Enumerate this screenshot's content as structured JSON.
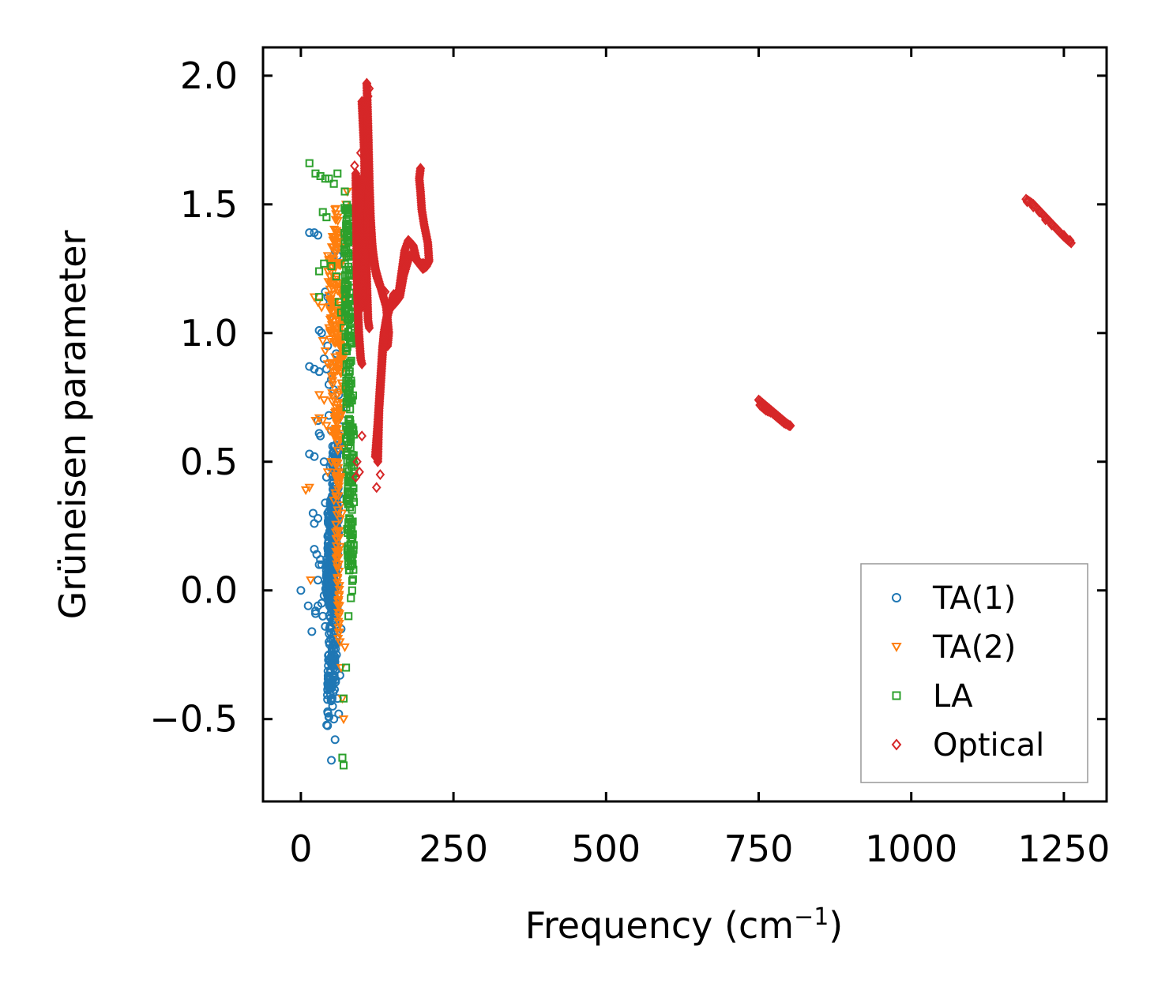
{
  "chart_data": {
    "type": "scatter",
    "title": "",
    "xlabel": "Frequency (cm",
    "xlabel_sup": "−1",
    "xlabel_close": ")",
    "ylabel": "Grüneisen parameter",
    "xlim": [
      -62,
      1320
    ],
    "ylim": [
      -0.82,
      2.11
    ],
    "xticks": [
      0,
      250,
      500,
      750,
      1000,
      1250
    ],
    "xtick_labels": [
      "0",
      "250",
      "500",
      "750",
      "1000",
      "1250"
    ],
    "yticks": [
      -0.5,
      0.0,
      0.5,
      1.0,
      1.5,
      2.0
    ],
    "ytick_labels": [
      "−0.5",
      "0.0",
      "0.5",
      "1.0",
      "1.5",
      "2.0"
    ],
    "grid": false,
    "legend_position": "bottom-right",
    "series": [
      {
        "name": "TA(1)",
        "marker": "circle",
        "color": "#1f77b4",
        "points": [
          [
            0,
            0
          ],
          [
            14,
            1.39
          ],
          [
            22,
            1.39
          ],
          [
            28,
            1.38
          ],
          [
            14,
            0.87
          ],
          [
            22,
            0.86
          ],
          [
            30,
            0.85
          ],
          [
            14,
            0.53
          ],
          [
            22,
            0.52
          ],
          [
            28,
            0.66
          ],
          [
            30,
            0.61
          ],
          [
            32,
            0.6
          ],
          [
            20,
            0.3
          ],
          [
            22,
            0.26
          ],
          [
            28,
            0.28
          ],
          [
            22,
            0.16
          ],
          [
            26,
            0.14
          ],
          [
            30,
            0.1
          ],
          [
            32,
            0.12
          ],
          [
            34,
            0.1
          ],
          [
            28,
            0.04
          ],
          [
            12,
            -0.06
          ],
          [
            24,
            -0.08
          ],
          [
            34,
            -0.05
          ],
          [
            38,
            -0.02
          ],
          [
            18,
            -0.16
          ],
          [
            24,
            -0.09
          ],
          [
            28,
            -0.06
          ],
          [
            36,
            -0.1
          ],
          [
            40,
            -0.14
          ],
          [
            30,
            1.01
          ],
          [
            34,
            1.0
          ],
          [
            40,
            1.16
          ],
          [
            44,
            1.14
          ],
          [
            48,
            1.12
          ],
          [
            56,
            1.32
          ],
          [
            60,
            1.3
          ],
          [
            38,
            0.9
          ],
          [
            42,
            0.86
          ],
          [
            46,
            0.8
          ],
          [
            50,
            0.82
          ],
          [
            54,
            0.78
          ],
          [
            62,
            0.76
          ],
          [
            38,
            0.5
          ],
          [
            42,
            0.44
          ],
          [
            48,
            0.48
          ],
          [
            52,
            0.56
          ],
          [
            58,
            0.62
          ],
          [
            64,
            0.6
          ],
          [
            40,
            0.34
          ],
          [
            44,
            0.3
          ],
          [
            46,
            -0.25
          ],
          [
            48,
            -0.32
          ],
          [
            50,
            -0.38
          ],
          [
            52,
            -0.45
          ],
          [
            54,
            -0.5
          ],
          [
            56,
            -0.58
          ],
          [
            50,
            -0.66
          ],
          [
            60,
            -0.42
          ],
          [
            62,
            -0.48
          ],
          [
            64,
            -0.33
          ],
          [
            58,
            -0.2
          ],
          [
            66,
            -0.15
          ],
          [
            44,
            0.95
          ],
          [
            52,
            1.05
          ],
          [
            58,
            0.92
          ],
          [
            62,
            0.88
          ],
          [
            66,
            0.7
          ],
          [
            70,
            0.66
          ],
          [
            46,
            0.68
          ],
          [
            50,
            0.62
          ]
        ],
        "dense_bands": [
          [
            [
              42,
              -0.55
            ],
            [
              52,
              0.55
            ],
            [
              64,
              0.6
            ],
            [
              58,
              -0.35
            ]
          ],
          [
            [
              40,
              0.0
            ],
            [
              46,
              0.35
            ],
            [
              60,
              0.4
            ],
            [
              54,
              -0.1
            ]
          ]
        ]
      },
      {
        "name": "TA(2)",
        "marker": "triangle-down",
        "color": "#ff7f0e",
        "points": [
          [
            8,
            0.39
          ],
          [
            14,
            0.4
          ],
          [
            16,
            0.04
          ],
          [
            22,
            1.14
          ],
          [
            28,
            1.12
          ],
          [
            34,
            1.1
          ],
          [
            30,
            0.76
          ],
          [
            38,
            0.74
          ],
          [
            44,
            0.88
          ],
          [
            30,
            0.67
          ],
          [
            36,
            0.66
          ],
          [
            42,
            0.64
          ],
          [
            48,
            1.22
          ],
          [
            52,
            1.2
          ],
          [
            56,
            1.48
          ],
          [
            60,
            1.45
          ],
          [
            44,
            1.3
          ],
          [
            36,
            0.97
          ],
          [
            40,
            0.93
          ],
          [
            46,
            1.02
          ],
          [
            24,
            0.66
          ],
          [
            50,
            0.5
          ],
          [
            54,
            0.35
          ],
          [
            58,
            0.2
          ],
          [
            60,
            0.05
          ],
          [
            62,
            -0.1
          ],
          [
            64,
            -0.2
          ],
          [
            66,
            -0.3
          ],
          [
            68,
            -0.42
          ],
          [
            70,
            -0.5
          ],
          [
            72,
            -0.22
          ],
          [
            68,
            0.3
          ],
          [
            64,
            0.7
          ],
          [
            66,
            0.9
          ],
          [
            70,
            0.55
          ],
          [
            72,
            1.3
          ],
          [
            74,
            1.5
          ],
          [
            76,
            1.55
          ],
          [
            56,
            1.0
          ],
          [
            52,
            0.8
          ],
          [
            58,
            0.6
          ],
          [
            62,
            0.42
          ],
          [
            48,
            0.62
          ],
          [
            44,
            0.46
          ]
        ],
        "dense_bands": [
          [
            [
              44,
              1.25
            ],
            [
              58,
              1.5
            ],
            [
              72,
              1.2
            ],
            [
              62,
              -0.3
            ],
            [
              54,
              0.5
            ]
          ]
        ]
      },
      {
        "name": "LA",
        "marker": "square",
        "color": "#2ca02c",
        "points": [
          [
            14,
            1.66
          ],
          [
            24,
            1.62
          ],
          [
            32,
            1.61
          ],
          [
            40,
            1.6
          ],
          [
            46,
            1.6
          ],
          [
            54,
            1.58
          ],
          [
            60,
            1.62
          ],
          [
            36,
            1.47
          ],
          [
            42,
            1.45
          ],
          [
            30,
            1.24
          ],
          [
            38,
            1.27
          ],
          [
            30,
            1.14
          ],
          [
            50,
            1.26
          ],
          [
            58,
            1.22
          ],
          [
            62,
            1.12
          ],
          [
            66,
            1.08
          ],
          [
            70,
            1.02
          ],
          [
            74,
            0.94
          ],
          [
            78,
            0.88
          ],
          [
            80,
            0.8
          ],
          [
            82,
            0.6
          ],
          [
            84,
            0.5
          ],
          [
            86,
            0.36
          ],
          [
            84,
            0.2
          ],
          [
            86,
            0.08
          ],
          [
            84,
            0.0
          ],
          [
            82,
            -0.03
          ],
          [
            78,
            -0.1
          ],
          [
            74,
            -0.3
          ],
          [
            70,
            -0.42
          ],
          [
            68,
            -0.65
          ],
          [
            70,
            -0.68
          ],
          [
            72,
            1.55
          ],
          [
            76,
            1.48
          ],
          [
            80,
            1.4
          ],
          [
            82,
            1.3
          ],
          [
            84,
            1.2
          ],
          [
            86,
            1.1
          ],
          [
            88,
            1.0
          ]
        ],
        "dense_bands": [
          [
            [
              70,
              1.5
            ],
            [
              80,
              1.5
            ],
            [
              88,
              0.5
            ],
            [
              86,
              0.0
            ],
            [
              76,
              0.1
            ],
            [
              72,
              0.9
            ]
          ]
        ]
      },
      {
        "name": "Optical",
        "marker": "diamond",
        "color": "#d62728",
        "points": [
          [
            88,
            1.65
          ],
          [
            98,
            1.7
          ],
          [
            108,
            1.97
          ],
          [
            110,
            1.92
          ],
          [
            112,
            1.95
          ],
          [
            124,
            0.4
          ],
          [
            130,
            0.45
          ],
          [
            92,
            0.5
          ],
          [
            96,
            0.46
          ],
          [
            100,
            0.6
          ],
          [
            90,
            0.44
          ],
          [
            1190,
            1.51
          ],
          [
            1200,
            1.49
          ],
          [
            1210,
            1.47
          ],
          [
            1220,
            1.44
          ],
          [
            1230,
            1.42
          ],
          [
            1240,
            1.4
          ],
          [
            1250,
            1.38
          ],
          [
            1260,
            1.36
          ]
        ],
        "bands": [
          [
            [
              90,
              1.62
            ],
            [
              92,
              1.2
            ],
            [
              95,
              1.0
            ],
            [
              98,
              0.9
            ],
            [
              100,
              0.88
            ]
          ],
          [
            [
              100,
              1.9
            ],
            [
              104,
              1.7
            ],
            [
              106,
              1.4
            ],
            [
              108,
              1.2
            ],
            [
              110,
              1.05
            ],
            [
              112,
              1.02
            ]
          ],
          [
            [
              108,
              1.97
            ],
            [
              110,
              1.8
            ],
            [
              112,
              1.6
            ],
            [
              114,
              1.45
            ],
            [
              118,
              1.3
            ],
            [
              124,
              1.22
            ],
            [
              130,
              1.18
            ],
            [
              138,
              1.16
            ]
          ],
          [
            [
              112,
              1.55
            ],
            [
              116,
              1.35
            ],
            [
              122,
              1.25
            ],
            [
              128,
              1.2
            ],
            [
              134,
              1.15
            ],
            [
              140,
              1.1
            ],
            [
              144,
              1.0
            ],
            [
              142,
              0.95
            ]
          ],
          [
            [
              122,
              0.52
            ],
            [
              126,
              0.65
            ],
            [
              130,
              0.8
            ],
            [
              134,
              0.95
            ],
            [
              140,
              1.05
            ],
            [
              146,
              1.1
            ],
            [
              152,
              1.15
            ],
            [
              160,
              1.15
            ],
            [
              166,
              1.25
            ],
            [
              170,
              1.32
            ],
            [
              176,
              1.36
            ],
            [
              184,
              1.34
            ],
            [
              190,
              1.28
            ],
            [
              200,
              1.25
            ],
            [
              206,
              1.26
            ],
            [
              210,
              1.28
            ],
            [
              208,
              1.35
            ],
            [
              202,
              1.42
            ],
            [
              198,
              1.48
            ],
            [
              196,
              1.55
            ],
            [
              194,
              1.6
            ],
            [
              196,
              1.64
            ]
          ],
          [
            [
              126,
              0.5
            ],
            [
              128,
              0.7
            ],
            [
              132,
              0.85
            ],
            [
              136,
              1.0
            ],
            [
              142,
              1.08
            ],
            [
              148,
              1.1
            ],
            [
              156,
              1.12
            ],
            [
              162,
              1.14
            ],
            [
              168,
              1.22
            ],
            [
              178,
              1.3
            ],
            [
              186,
              1.3
            ],
            [
              194,
              1.27
            ],
            [
              204,
              1.27
            ]
          ],
          [
            [
              100,
              1.1
            ],
            [
              104,
              1.3
            ],
            [
              106,
              1.5
            ],
            [
              108,
              1.65
            ],
            [
              110,
              1.75
            ]
          ],
          [
            [
              94,
              1.3
            ],
            [
              96,
              1.45
            ],
            [
              98,
              1.55
            ],
            [
              100,
              1.6
            ]
          ],
          [
            [
              750,
              0.74
            ],
            [
              760,
              0.72
            ],
            [
              770,
              0.7
            ],
            [
              780,
              0.68
            ],
            [
              790,
              0.66
            ],
            [
              800,
              0.64
            ]
          ],
          [
            [
              752,
              0.72
            ],
            [
              762,
              0.7
            ],
            [
              772,
              0.69
            ],
            [
              782,
              0.67
            ],
            [
              792,
              0.65
            ],
            [
              802,
              0.64
            ]
          ],
          [
            [
              1188,
              1.52
            ],
            [
              1200,
              1.5
            ],
            [
              1212,
              1.47
            ],
            [
              1224,
              1.44
            ],
            [
              1236,
              1.41
            ],
            [
              1248,
              1.38
            ],
            [
              1262,
              1.35
            ]
          ]
        ]
      }
    ]
  }
}
